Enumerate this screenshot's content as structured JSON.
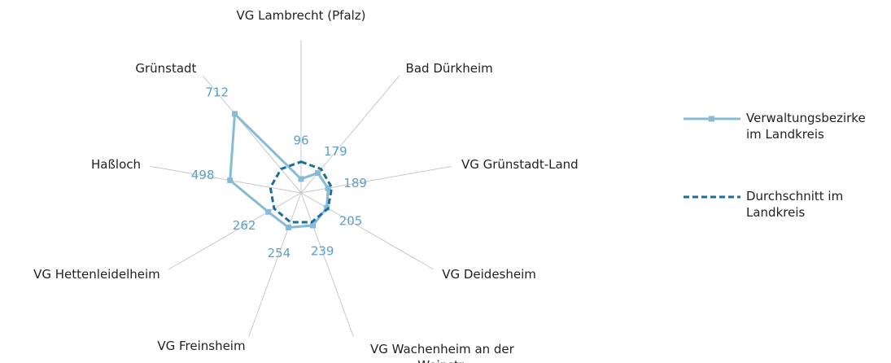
{
  "chart_data": {
    "type": "radar",
    "categories": [
      "VG Lambrecht (Pfalz)",
      "Bad Dürkheim",
      "VG Grünstadt-Land",
      "VG Deidesheim",
      "VG Wachenheim an der Weinstr.",
      "VG Freinsheim",
      "VG Hettenleidelheim",
      "Haßloch",
      "Grünstadt"
    ],
    "ylim": [
      0,
      1000
    ],
    "series": [
      {
        "name": "Verwaltungsbezirke im Landkreis",
        "color": "#86bbd8",
        "values": [
          96,
          179,
          189,
          205,
          239,
          254,
          262,
          498,
          712
        ],
        "show_labels": true
      },
      {
        "name": "Durchschnitt im Landkreis",
        "color": "#1b6d9c",
        "dashed": true,
        "values": [
          215,
          215,
          215,
          215,
          215,
          215,
          215,
          215,
          215
        ]
      }
    ],
    "legend": "right"
  }
}
